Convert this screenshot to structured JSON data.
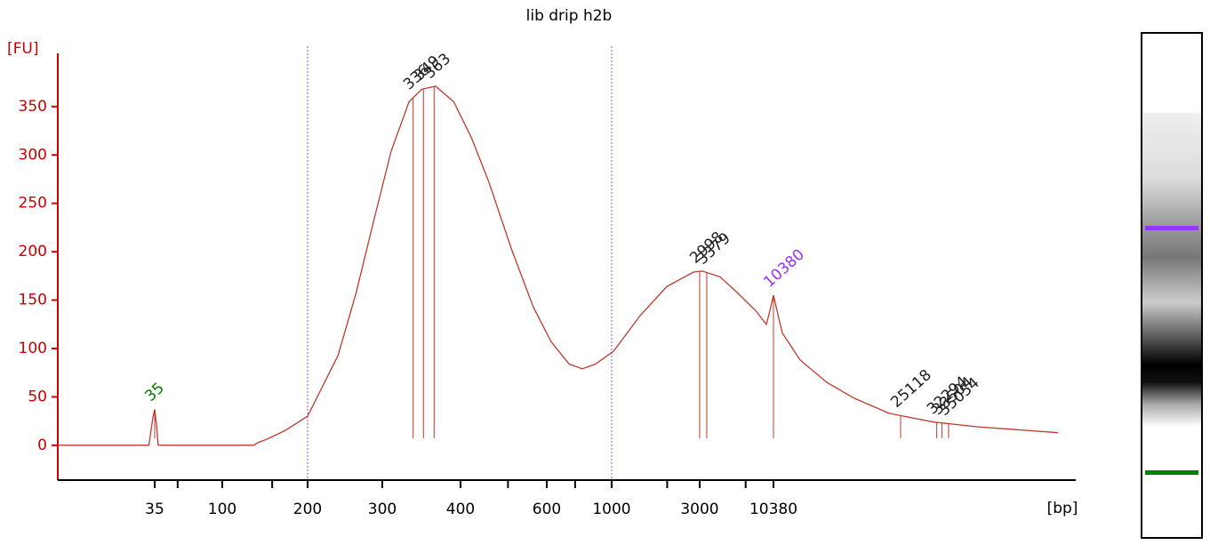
{
  "chart_data": {
    "type": "electropherogram",
    "title": "lib drip h2b",
    "y_label": "[FU]",
    "x_label": "[bp]",
    "x": [
      8,
      32,
      34,
      35,
      36,
      37,
      129,
      134,
      143,
      166,
      200,
      236,
      260,
      286,
      310,
      331,
      347,
      365,
      390,
      421,
      457,
      508,
      563,
      621,
      715,
      794,
      881,
      1022,
      1426,
      1990,
      2776,
      3138,
      4231,
      5710,
      7696,
      9213,
      9772,
      10380,
      10640,
      11042,
      12494,
      15039,
      18103,
      23177,
      31560,
      43030,
      75000
    ],
    "values": [
      0,
      0,
      28,
      37,
      21,
      0,
      0,
      3,
      6,
      15,
      30,
      93,
      157,
      231,
      304,
      355,
      368,
      371,
      355,
      318,
      272,
      203,
      143,
      107,
      84,
      79,
      84,
      97,
      134,
      164,
      179,
      180,
      174,
      157,
      139,
      125,
      139,
      155,
      139,
      116,
      88,
      65,
      49,
      33,
      24,
      19,
      13
    ],
    "color": "#c0392b",
    "xlim": [
      8,
      75000
    ],
    "xticks": [
      35,
      100,
      200,
      300,
      400,
      600,
      1000,
      3000,
      10380
    ],
    "xminor": [
      50,
      150,
      500,
      750,
      2000,
      6500
    ],
    "ylim": [
      -36,
      405
    ],
    "yticks": [
      0,
      50,
      100,
      150,
      200,
      250,
      300,
      350
    ],
    "axis_color": "#cc0000",
    "markers": [
      200,
      1000
    ],
    "marker_colors": [
      "#8a4fb8",
      "#6a6ad8"
    ],
    "peaks": [
      35,
      336,
      349,
      363,
      2998,
      3379,
      10380,
      25118,
      32294,
      33504,
      35054
    ],
    "peak_colors": [
      "#008000",
      "#222222",
      "#222222",
      "#222222",
      "#222222",
      "#222222",
      "#9933ff",
      "#222222",
      "#222222",
      "#222222",
      "#222222"
    ]
  }
}
